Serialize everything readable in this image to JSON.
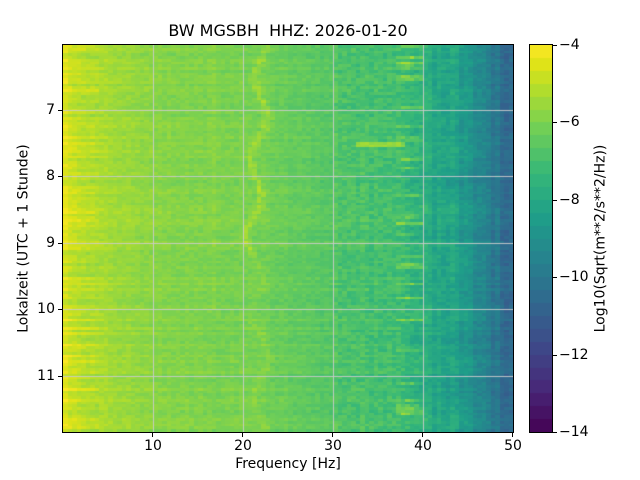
{
  "title": "BW MGSBH  HHZ: 2026-01-20",
  "axes": {
    "xlabel": "Frequency [Hz]",
    "ylabel": "Lokalzeit (UTC + 1 Stunde)",
    "x_ticks": [
      10,
      20,
      30,
      40,
      50
    ],
    "y_ticks": [
      7,
      8,
      9,
      10,
      11
    ],
    "x_range_hz": [
      0,
      50
    ],
    "y_range_hours": [
      6.02,
      11.85
    ],
    "grid_color": "#cccccc"
  },
  "colorbar": {
    "label": "Log10(Sqrt(m**2/s**2/Hz))",
    "tick_values": [
      -4,
      -6,
      -8,
      -10,
      -12,
      -14
    ],
    "tick_labels": [
      "−4",
      "−6",
      "−8",
      "−10",
      "−12",
      "−14"
    ],
    "value_range": [
      -14,
      -4
    ],
    "colormap": "viridis",
    "steps": 30
  },
  "chart_data": {
    "type": "heatmap",
    "subtype": "seismic-spectrogram",
    "title": "BW MGSBH  HHZ: 2026-01-20",
    "network_station_channel": "BW MGSBH HHZ",
    "date": "2026-01-20",
    "xlabel": "Frequency [Hz]",
    "ylabel": "Lokalzeit (UTC + 1 Stunde)",
    "xlim": [
      0,
      50
    ],
    "ylim_hours": [
      6.02,
      11.85
    ],
    "value_label": "Log10(Sqrt(m**2/s**2/Hz))",
    "value_range": [
      -14,
      -4
    ],
    "grid": true,
    "colormap_stops": [
      [
        0.0,
        68,
        1,
        84
      ],
      [
        0.111,
        72,
        40,
        120
      ],
      [
        0.222,
        62,
        73,
        137
      ],
      [
        0.333,
        49,
        104,
        142
      ],
      [
        0.444,
        38,
        130,
        142
      ],
      [
        0.556,
        31,
        158,
        137
      ],
      [
        0.667,
        53,
        183,
        121
      ],
      [
        0.778,
        110,
        206,
        88
      ],
      [
        0.889,
        181,
        222,
        43
      ],
      [
        0.95,
        223,
        227,
        24
      ],
      [
        1.0,
        253,
        231,
        37
      ]
    ],
    "spectral_profile": {
      "freq_hz": [
        0,
        0.5,
        1,
        2,
        3,
        5,
        8,
        12,
        17,
        21,
        25,
        30,
        34,
        37,
        39,
        40,
        41,
        42.5,
        44,
        46,
        48,
        50
      ],
      "mean_log_power": [
        -4.35,
        -4.6,
        -4.8,
        -5.0,
        -5.15,
        -5.35,
        -5.6,
        -5.85,
        -6.0,
        -6.05,
        -6.35,
        -6.7,
        -6.9,
        -7.1,
        -7.45,
        -7.75,
        -8.05,
        -7.95,
        -8.45,
        -9.2,
        -10.0,
        -10.6
      ]
    },
    "features": [
      {
        "name": "microseism-band",
        "freq_hz": [
          0,
          3
        ],
        "log_power": -4.7
      },
      {
        "name": "tonal-line",
        "center_freq_hz": 21.6,
        "wander_hz": 1.0,
        "boost": 0.75
      },
      {
        "name": "faint-tonal-line",
        "center_freq_hz": 16.8,
        "wander_hz": 0.3,
        "boost": 0.25
      },
      {
        "name": "burst-blobs",
        "freq_hz": [
          37,
          40
        ],
        "boost": 1.5
      },
      {
        "name": "horizontal-streak",
        "time_hours": 7.52,
        "freq_hz": [
          32.5,
          37.8
        ],
        "boost": 1.3
      },
      {
        "name": "high-freq-rolloff",
        "freq_hz": [
          40,
          50
        ]
      }
    ],
    "render": {
      "freq_bin_hz": 0.5,
      "time_rows": 140,
      "noise_seed": 123457,
      "cell_noise_low": 0.22,
      "cell_noise_mid": 0.38,
      "cell_noise_high": 0.33,
      "row_noise": 0.17,
      "column_noise_hf": 0.3,
      "edge_wiggle_hz": 0.9
    }
  }
}
